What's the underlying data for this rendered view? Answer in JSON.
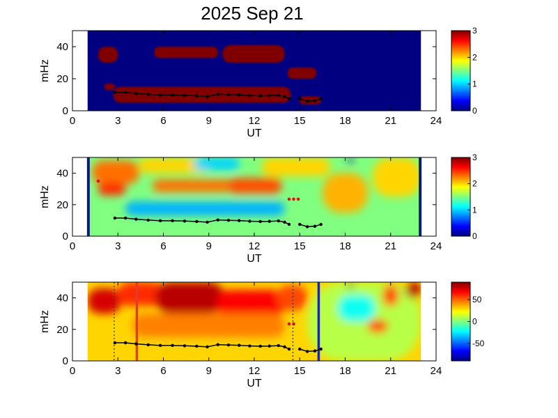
{
  "figure": {
    "title": "2025 Sep 21"
  },
  "chart_data": [
    {
      "type": "heatmap",
      "panel": "top",
      "xlabel": "UT",
      "ylabel": "mHz",
      "xlim": [
        0,
        24
      ],
      "ylim": [
        0,
        50
      ],
      "xticks": [
        "0",
        "3",
        "6",
        "9",
        "12",
        "15",
        "18",
        "21",
        "24"
      ],
      "yticks": [
        "0",
        "20",
        "40"
      ],
      "data_coverage_ut": [
        1,
        23
      ],
      "background_value": 0,
      "colorbar": {
        "range": [
          0,
          3
        ],
        "ticks": [
          "0",
          "1",
          "2",
          "3"
        ]
      },
      "regions": [
        {
          "ut": [
            1.7,
            3.0
          ],
          "mhz": [
            30,
            40
          ],
          "value": 3
        },
        {
          "ut": [
            2.1,
            2.8
          ],
          "mhz": [
            13,
            17
          ],
          "value": 3
        },
        {
          "ut": [
            5.4,
            9.6
          ],
          "mhz": [
            33,
            40
          ],
          "value": 3
        },
        {
          "ut": [
            9.9,
            14.0
          ],
          "mhz": [
            30,
            41
          ],
          "value": 3
        },
        {
          "ut": [
            2.7,
            14.4
          ],
          "mhz": [
            5,
            15
          ],
          "value": 3
        },
        {
          "ut": [
            14.2,
            16.1
          ],
          "mhz": [
            20,
            27
          ],
          "value": 3
        },
        {
          "ut": [
            15.0,
            16.4
          ],
          "mhz": [
            4,
            9
          ],
          "value": 3
        }
      ],
      "track": {
        "ut": [
          2.8,
          3.5,
          4.2,
          5.0,
          5.8,
          6.6,
          7.4,
          8.2,
          8.9,
          9.6,
          10.3,
          11.0,
          11.7,
          12.4,
          13.0,
          13.6,
          14.0,
          14.3
        ],
        "mhz": [
          11.5,
          11.5,
          10.8,
          10.2,
          9.8,
          9.8,
          9.6,
          9.3,
          8.9,
          10.3,
          10.1,
          9.9,
          9.5,
          9.3,
          9.4,
          9.7,
          8.9,
          7.5
        ]
      },
      "track2": {
        "ut": [
          15.0,
          15.5,
          16.0,
          16.4
        ],
        "mhz": [
          7.5,
          6.0,
          6.3,
          7.5
        ]
      }
    },
    {
      "type": "heatmap",
      "panel": "middle",
      "xlabel": "UT",
      "ylabel": "mHz",
      "xlim": [
        0,
        24
      ],
      "ylim": [
        0,
        50
      ],
      "xticks": [
        "0",
        "3",
        "6",
        "9",
        "12",
        "15",
        "18",
        "21",
        "24"
      ],
      "yticks": [
        "0",
        "20",
        "40"
      ],
      "data_coverage_ut": [
        1,
        23
      ],
      "background_value": 1.5,
      "colorbar": {
        "range": [
          0,
          3
        ],
        "ticks": [
          "0",
          "1",
          "2",
          "3"
        ]
      },
      "edge_lines_ut": [
        1.05,
        22.95
      ],
      "regions": [
        {
          "ut": [
            1.3,
            4.4
          ],
          "mhz": [
            33,
            48
          ],
          "value": 2.3
        },
        {
          "ut": [
            1.7,
            3.5
          ],
          "mhz": [
            26,
            34
          ],
          "value": 2.5
        },
        {
          "ut": [
            5.3,
            10.5
          ],
          "mhz": [
            28,
            36
          ],
          "value": 2.3
        },
        {
          "ut": [
            10.3,
            13.8
          ],
          "mhz": [
            27,
            37
          ],
          "value": 2.4
        },
        {
          "ut": [
            3.5,
            14.0
          ],
          "mhz": [
            13,
            22
          ],
          "value": 0.9
        },
        {
          "ut": [
            4.4,
            9.0
          ],
          "mhz": [
            40,
            50
          ],
          "value": 2.0
        },
        {
          "ut": [
            12.5,
            17.0
          ],
          "mhz": [
            38,
            50
          ],
          "value": 2.0
        },
        {
          "ut": [
            16.5,
            19.5
          ],
          "mhz": [
            15,
            40
          ],
          "value": 2.1
        },
        {
          "ut": [
            19.8,
            23.0
          ],
          "mhz": [
            25,
            50
          ],
          "value": 2.0
        },
        {
          "ut": [
            8.0,
            11.0
          ],
          "mhz": [
            42,
            50
          ],
          "value": 1.0
        },
        {
          "ut": [
            18.2,
            18.5
          ],
          "mhz": [
            46,
            50
          ],
          "value": 0.0
        }
      ],
      "track": {
        "ut": [
          2.8,
          3.5,
          4.2,
          5.0,
          5.8,
          6.6,
          7.4,
          8.2,
          8.9,
          9.6,
          10.3,
          11.0,
          11.7,
          12.4,
          13.0,
          13.6,
          14.0,
          14.3
        ],
        "mhz": [
          11.5,
          11.5,
          10.8,
          10.2,
          9.8,
          9.8,
          9.6,
          9.3,
          8.9,
          10.3,
          10.1,
          9.9,
          9.5,
          9.3,
          9.4,
          9.7,
          8.9,
          7.5
        ]
      },
      "track2": {
        "ut": [
          15.0,
          15.5,
          16.0,
          16.4
        ],
        "mhz": [
          7.5,
          6.0,
          6.3,
          7.5
        ]
      },
      "red_marks": [
        {
          "ut": [
            1.7
          ],
          "mhz": [
            35
          ]
        },
        {
          "ut": [
            14.3,
            14.6,
            14.9
          ],
          "mhz": [
            23.5,
            23.5,
            23.5
          ]
        }
      ]
    },
    {
      "type": "heatmap",
      "panel": "bottom",
      "xlabel": "UT",
      "ylabel": "mHz",
      "xlim": [
        0,
        24
      ],
      "ylim": [
        0,
        50
      ],
      "xticks": [
        "0",
        "3",
        "6",
        "9",
        "12",
        "15",
        "18",
        "21",
        "24"
      ],
      "yticks": [
        "0",
        "20",
        "40"
      ],
      "data_coverage_ut": [
        1,
        23
      ],
      "background_value": 30,
      "colorbar": {
        "range": [
          -90,
          90
        ],
        "ticks": [
          "50",
          "0",
          "-50"
        ],
        "tick_values": [
          50,
          0,
          -50
        ]
      },
      "regions": [
        {
          "ut": [
            1.0,
            3.2
          ],
          "mhz": [
            30,
            46
          ],
          "value": 75
        },
        {
          "ut": [
            3.0,
            6.0
          ],
          "mhz": [
            35,
            50
          ],
          "value": 60
        },
        {
          "ut": [
            5.5,
            10.0
          ],
          "mhz": [
            30,
            50
          ],
          "value": 80
        },
        {
          "ut": [
            9.5,
            14.0
          ],
          "mhz": [
            28,
            45
          ],
          "value": 68
        },
        {
          "ut": [
            4.0,
            14.0
          ],
          "mhz": [
            15,
            30
          ],
          "value": 45
        },
        {
          "ut": [
            13.5,
            15.5
          ],
          "mhz": [
            32,
            48
          ],
          "value": 55
        },
        {
          "ut": [
            15.5,
            23.0
          ],
          "mhz": [
            0,
            50
          ],
          "value": 10
        },
        {
          "ut": [
            17.5,
            20.0
          ],
          "mhz": [
            25,
            42
          ],
          "value": -20
        },
        {
          "ut": [
            20.5,
            21.5
          ],
          "mhz": [
            35,
            48
          ],
          "value": 55
        },
        {
          "ut": [
            19.5,
            20.8
          ],
          "mhz": [
            18,
            26
          ],
          "value": 55
        },
        {
          "ut": [
            22.0,
            23.0
          ],
          "mhz": [
            40,
            50
          ],
          "value": 80
        },
        {
          "ut": [
            18.2,
            18.5
          ],
          "mhz": [
            46,
            50
          ],
          "value": -90
        }
      ],
      "vlines": [
        {
          "ut": 2.75,
          "style": "dotted",
          "color": "#404040"
        },
        {
          "ut": 4.25,
          "style": "solid",
          "color": "#e03c31"
        },
        {
          "ut": 14.55,
          "style": "dotted",
          "color": "#404040"
        },
        {
          "ut": 16.25,
          "style": "solid",
          "color": "#1e28a0"
        }
      ],
      "track": {
        "ut": [
          2.8,
          3.5,
          4.2,
          5.0,
          5.8,
          6.6,
          7.4,
          8.2,
          8.9,
          9.6,
          10.3,
          11.0,
          11.7,
          12.4,
          13.0,
          13.6,
          14.0,
          14.3
        ],
        "mhz": [
          11.5,
          11.5,
          10.8,
          10.2,
          9.8,
          9.8,
          9.6,
          9.3,
          8.9,
          10.3,
          10.1,
          9.9,
          9.5,
          9.3,
          9.4,
          9.7,
          8.9,
          7.5
        ]
      },
      "track2": {
        "ut": [
          15.0,
          15.5,
          16.0,
          16.4
        ],
        "mhz": [
          7.5,
          6.0,
          6.3,
          7.5
        ]
      },
      "red_marks": [
        {
          "ut": [
            14.3,
            14.6
          ],
          "mhz": [
            23.5,
            23.5
          ]
        }
      ]
    }
  ]
}
